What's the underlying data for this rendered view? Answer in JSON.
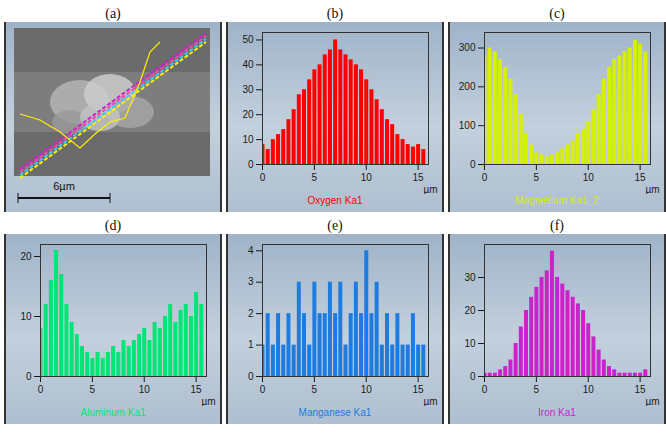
{
  "chart_data": [
    {
      "type": "image",
      "title": "(a)",
      "annotations": [
        "6µm"
      ]
    },
    {
      "type": "bar",
      "title": "(b)",
      "xlabel": "µm",
      "xlim": [
        0,
        16
      ],
      "xticks": [
        0,
        5,
        10,
        15
      ],
      "ylim": [
        0,
        53
      ],
      "yticks": [
        0,
        10,
        20,
        30,
        40,
        50
      ],
      "x": [
        0,
        0.5,
        1,
        1.5,
        2,
        2.5,
        3,
        3.5,
        4,
        4.5,
        5,
        5.5,
        6,
        6.5,
        7,
        7.5,
        8,
        8.5,
        9,
        9.5,
        10,
        10.5,
        11,
        11.5,
        12,
        12.5,
        13,
        13.5,
        14,
        14.5,
        15,
        15.5
      ],
      "series": [
        {
          "name": "Oxygen Ka1",
          "color": "#ff0000",
          "values": [
            8,
            6,
            10,
            12,
            14,
            18,
            22,
            28,
            30,
            34,
            38,
            40,
            44,
            46,
            50,
            46,
            44,
            42,
            40,
            38,
            34,
            30,
            26,
            22,
            18,
            16,
            12,
            10,
            8,
            7,
            8,
            6
          ]
        }
      ]
    },
    {
      "type": "bar",
      "title": "(c)",
      "xlabel": "µm",
      "xlim": [
        0,
        16
      ],
      "xticks": [
        0,
        5,
        10,
        15
      ],
      "ylim": [
        0,
        340
      ],
      "yticks": [
        0,
        100,
        200,
        300
      ],
      "x": [
        0,
        0.5,
        1,
        1.5,
        2,
        2.5,
        3,
        3.5,
        4,
        4.5,
        5,
        5.5,
        6,
        6.5,
        7,
        7.5,
        8,
        8.5,
        9,
        9.5,
        10,
        10.5,
        11,
        11.5,
        12,
        12.5,
        13,
        13.5,
        14,
        14.5,
        15,
        15.5
      ],
      "series": [
        {
          "name": "Magnesium Ka1_2",
          "color": "#d7ef00",
          "values": [
            280,
            300,
            290,
            270,
            250,
            220,
            180,
            130,
            80,
            50,
            30,
            25,
            20,
            25,
            30,
            40,
            50,
            60,
            80,
            90,
            110,
            140,
            180,
            220,
            250,
            270,
            280,
            290,
            300,
            320,
            310,
            290
          ]
        }
      ]
    },
    {
      "type": "bar",
      "title": "(d)",
      "xlabel": "µm",
      "xlim": [
        0,
        16
      ],
      "xticks": [
        0,
        5,
        10,
        15
      ],
      "ylim": [
        0,
        22
      ],
      "yticks": [
        0,
        10,
        20
      ],
      "x": [
        0,
        0.5,
        1,
        1.5,
        2,
        2.5,
        3,
        3.5,
        4,
        4.5,
        5,
        5.5,
        6,
        6.5,
        7,
        7.5,
        8,
        8.5,
        9,
        9.5,
        10,
        10.5,
        11,
        11.5,
        12,
        12.5,
        13,
        13.5,
        14,
        14.5,
        15,
        15.5
      ],
      "series": [
        {
          "name": "Aluminum Ka1",
          "color": "#00e676",
          "values": [
            8,
            12,
            16,
            21,
            17,
            12,
            9,
            7,
            5,
            4,
            3,
            4,
            3,
            4,
            5,
            4,
            6,
            5,
            6,
            7,
            8,
            6,
            9,
            8,
            10,
            12,
            9,
            11,
            12,
            10,
            14,
            12
          ]
        }
      ]
    },
    {
      "type": "bar",
      "title": "(e)",
      "xlabel": "µm",
      "xlim": [
        0,
        16
      ],
      "xticks": [
        0,
        5,
        10,
        15
      ],
      "ylim": [
        0,
        4.2
      ],
      "yticks": [
        0,
        1,
        2,
        3,
        4
      ],
      "x": [
        0,
        0.5,
        1,
        1.5,
        2,
        2.5,
        3,
        3.5,
        4,
        4.5,
        5,
        5.5,
        6,
        6.5,
        7,
        7.5,
        8,
        8.5,
        9,
        9.5,
        10,
        10.5,
        11,
        11.5,
        12,
        12.5,
        13,
        13.5,
        14,
        14.5,
        15,
        15.5
      ],
      "series": [
        {
          "name": "Manganese Ka1",
          "color": "#1e7be0",
          "values": [
            1,
            2,
            1,
            2,
            1,
            2,
            1,
            3,
            2,
            1,
            3,
            2,
            2,
            3,
            2,
            3,
            1,
            2,
            3,
            2,
            4,
            2,
            3,
            1,
            2,
            1,
            2,
            1,
            1,
            2,
            1,
            1
          ]
        }
      ]
    },
    {
      "type": "bar",
      "title": "(f)",
      "xlabel": "µm",
      "xlim": [
        0,
        16
      ],
      "xticks": [
        0,
        5,
        10,
        15
      ],
      "ylim": [
        0,
        40
      ],
      "yticks": [
        0,
        10,
        20,
        30
      ],
      "x": [
        0,
        0.5,
        1,
        1.5,
        2,
        2.5,
        3,
        3.5,
        4,
        4.5,
        5,
        5.5,
        6,
        6.5,
        7,
        7.5,
        8,
        8.5,
        9,
        9.5,
        10,
        10.5,
        11,
        11.5,
        12,
        12.5,
        13,
        13.5,
        14,
        14.5,
        15,
        15.5
      ],
      "series": [
        {
          "name": "Iron Ka1",
          "color": "#cc22cc",
          "values": [
            1,
            1,
            1,
            2,
            3,
            5,
            10,
            15,
            20,
            24,
            27,
            30,
            32,
            38,
            30,
            28,
            26,
            24,
            22,
            20,
            16,
            12,
            8,
            5,
            3,
            2,
            1,
            1,
            1,
            1,
            1,
            2
          ]
        }
      ]
    }
  ]
}
